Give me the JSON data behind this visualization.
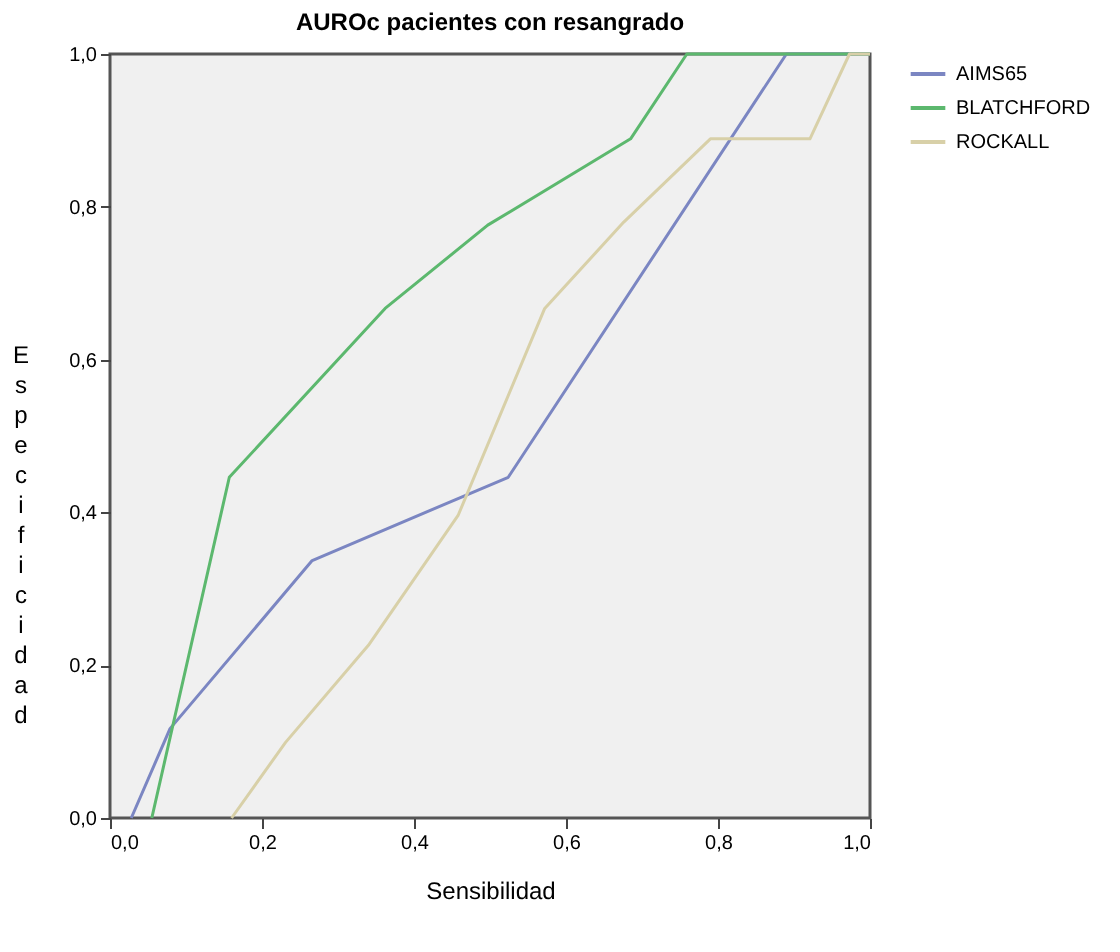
{
  "chart_data": {
    "type": "line",
    "title": "AUROc pacientes con resangrado",
    "xlabel": "Sensibilidad",
    "ylabel": "Especificidad",
    "xlim": [
      0,
      1
    ],
    "ylim": [
      0,
      1
    ],
    "xticks": [
      {
        "value": 0,
        "label": "0,0"
      },
      {
        "value": 0.2,
        "label": "0,2"
      },
      {
        "value": 0.4,
        "label": "0,4"
      },
      {
        "value": 0.6,
        "label": "0,6"
      },
      {
        "value": 0.8,
        "label": "0,8"
      },
      {
        "value": 1,
        "label": "1,0"
      }
    ],
    "yticks": [
      {
        "value": 0,
        "label": "0,0"
      },
      {
        "value": 0.2,
        "label": "0,2"
      },
      {
        "value": 0.4,
        "label": "0,4"
      },
      {
        "value": 0.6,
        "label": "0,6"
      },
      {
        "value": 0.8,
        "label": "0,8"
      },
      {
        "value": 1,
        "label": "1,0"
      }
    ],
    "grid": false,
    "legend": "top right",
    "marker": "none",
    "line_style": "solid",
    "series": [
      {
        "name": "AIMS65",
        "color": "#7b86c2",
        "x": [
          0.028,
          0.079,
          0.266,
          0.524,
          0.89,
          1
        ],
        "values": [
          0,
          0.117,
          0.337,
          0.446,
          1,
          1
        ]
      },
      {
        "name": "BLATCHFORD",
        "color": "#5cb86e",
        "x": [
          0.055,
          0.157,
          0.362,
          0.497,
          0.685,
          0.759,
          1
        ],
        "values": [
          0,
          0.446,
          0.667,
          0.776,
          0.889,
          1,
          1
        ]
      },
      {
        "name": "ROCKALL",
        "color": "#d8d0a8",
        "x": [
          0.16,
          0.231,
          0.34,
          0.458,
          0.572,
          0.676,
          0.79,
          0.921,
          0.973,
          1
        ],
        "values": [
          0,
          0.099,
          0.226,
          0.396,
          0.667,
          0.78,
          0.889,
          0.889,
          1,
          1
        ]
      }
    ]
  }
}
